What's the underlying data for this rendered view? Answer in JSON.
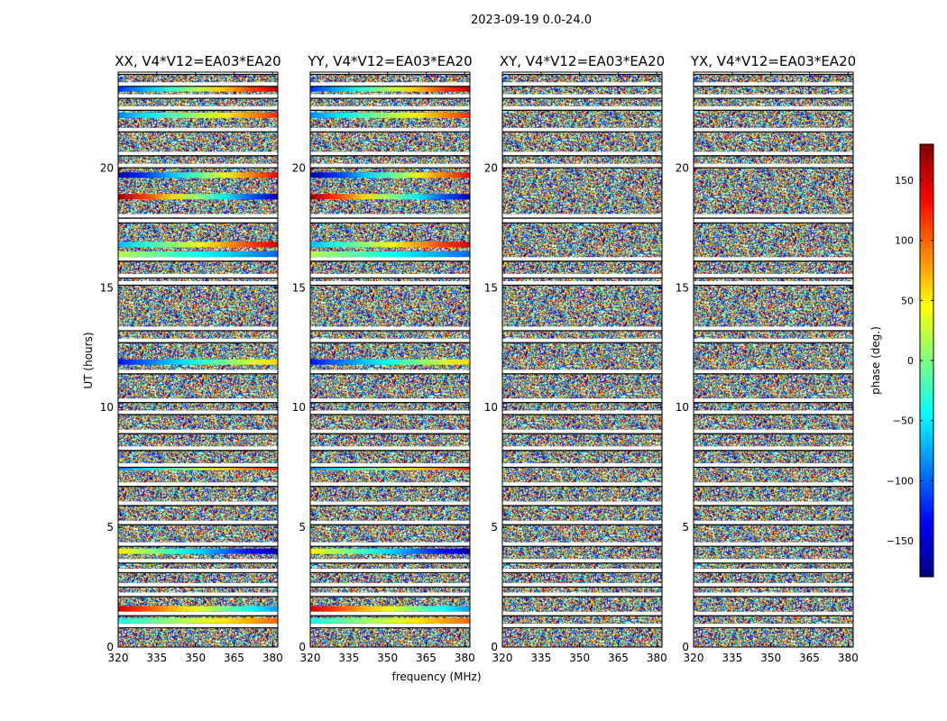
{
  "chart_data": {
    "type": "heatmap",
    "suptitle": "2023-09-19 0.0-24.0",
    "xlabel": "frequency (MHz)",
    "ylabel": "UT (hours)",
    "xlim": [
      320,
      382
    ],
    "ylim": [
      0,
      24
    ],
    "xticks": [
      320,
      335,
      350,
      365,
      380
    ],
    "yticks": [
      0,
      5,
      10,
      15,
      20
    ],
    "panels": [
      {
        "title": "XX, V4*V12=EA03*EA20"
      },
      {
        "title": "YY, V4*V12=EA03*EA20"
      },
      {
        "title": "XY, V4*V12=EA03*EA20"
      },
      {
        "title": "YX, V4*V12=EA03*EA20"
      }
    ],
    "colorbar": {
      "label": "phase (deg.)",
      "range": [
        -180,
        180
      ],
      "ticks": [
        150,
        100,
        50,
        0,
        -50,
        -100,
        -150
      ],
      "colormap": "jet"
    },
    "flagged_ut_hours": [
      0.9,
      1.4,
      2.2,
      2.6,
      3.2,
      3.6,
      4.3,
      5.2,
      6.0,
      6.8,
      7.6,
      8.3,
      9.0,
      9.8,
      10.3,
      11.5,
      12.8,
      13.3,
      15.2,
      15.5,
      16.2,
      17.8,
      18.0,
      20.1,
      20.6,
      21.6,
      22.5,
      23.0,
      23.5,
      24.0
    ],
    "coherent_rows": [
      {
        "ut": 23.3,
        "panels": [
          0,
          1
        ],
        "phase_start": -120,
        "phase_end": 160
      },
      {
        "ut": 22.2,
        "panels": [
          0,
          1
        ],
        "phase_start": -90,
        "phase_end": 120
      },
      {
        "ut": 19.7,
        "panels": [
          0,
          1
        ],
        "phase_start": -170,
        "phase_end": 140
      },
      {
        "ut": 18.8,
        "panels": [
          0,
          1
        ],
        "phase_start": 170,
        "phase_end": -160
      },
      {
        "ut": 16.8,
        "panels": [
          0,
          1
        ],
        "phase_start": -70,
        "phase_end": 150
      },
      {
        "ut": 16.4,
        "panels": [
          0,
          1
        ],
        "phase_start": 20,
        "phase_end": -100
      },
      {
        "ut": 11.9,
        "panels": [
          0,
          1
        ],
        "phase_start": -130,
        "phase_end": 60
      },
      {
        "ut": 7.5,
        "panels": [
          0,
          1
        ],
        "phase_start": -90,
        "phase_end": 130
      },
      {
        "ut": 4.0,
        "panels": [
          0,
          1
        ],
        "phase_start": 50,
        "phase_end": -170
      },
      {
        "ut": 1.6,
        "panels": [
          0,
          1
        ],
        "phase_start": 150,
        "phase_end": -80
      },
      {
        "ut": 1.1,
        "panels": [
          0,
          1
        ],
        "phase_start": -40,
        "phase_end": 100
      }
    ]
  }
}
